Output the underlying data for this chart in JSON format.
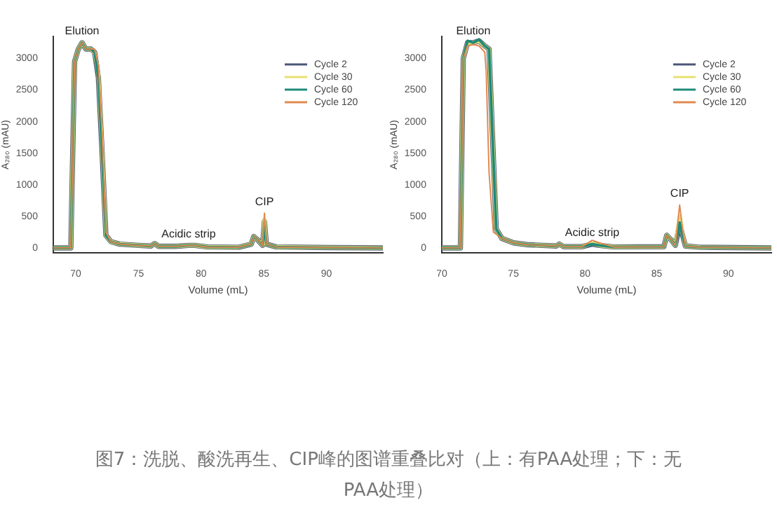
{
  "chart_data": [
    {
      "type": "line",
      "xlabel": "Volume (mL)",
      "ylabel": "A₂₈₀ (mAU)",
      "xlim": [
        68.2,
        94.5
      ],
      "xticks": [
        70,
        75,
        80,
        85,
        90
      ],
      "ylim": [
        -80,
        3350
      ],
      "yticks": [
        0,
        500,
        1000,
        1500,
        2000,
        2500,
        3000
      ],
      "grid": false,
      "legend": "top right",
      "marker": "none",
      "annotations": [
        {
          "text": "Elution",
          "x": 70.5,
          "y": 3250
        },
        {
          "text": "Acidic strip",
          "x": 79,
          "y": 40
        },
        {
          "text": "CIP",
          "x": 85.05,
          "y": 550
        },
        "图7：洗脱、酸洗再生、CIP峰的图谱重叠比对（上：有PAA处理；下：无PAA处理）"
      ],
      "series": [
        {
          "name": "Cycle 2",
          "color": "#4a5578",
          "x": [
            68.2,
            69.6,
            69.9,
            70.2,
            70.5,
            70.8,
            71.2,
            71.5,
            71.8,
            72.1,
            72.4,
            72.8,
            73.5,
            75,
            76,
            76.3,
            76.6,
            78,
            79,
            79.5,
            80.5,
            83,
            84,
            84.2,
            84.5,
            84.9,
            85.05,
            85.2,
            86,
            90,
            94.5
          ],
          "values": [
            0,
            0,
            2950,
            3150,
            3250,
            3150,
            3150,
            3100,
            2700,
            1500,
            200,
            100,
            60,
            40,
            30,
            70,
            25,
            25,
            40,
            40,
            15,
            10,
            60,
            180,
            130,
            40,
            420,
            60,
            15,
            5,
            0
          ]
        },
        {
          "name": "Cycle 30",
          "color": "#e8e070",
          "x": [
            68.2,
            69.6,
            69.9,
            70.2,
            70.5,
            70.8,
            71.2,
            71.5,
            71.8,
            72.1,
            72.4,
            72.8,
            73.5,
            75,
            76,
            76.3,
            76.6,
            78,
            79,
            79.5,
            80.5,
            83,
            84,
            84.2,
            84.5,
            84.9,
            85.05,
            85.2,
            86,
            90,
            94.5
          ],
          "values": [
            0,
            0,
            2950,
            3150,
            3250,
            3150,
            3150,
            3100,
            2750,
            1550,
            200,
            100,
            60,
            40,
            30,
            70,
            25,
            25,
            40,
            40,
            15,
            10,
            60,
            180,
            130,
            40,
            450,
            60,
            15,
            5,
            0
          ]
        },
        {
          "name": "Cycle 60",
          "color": "#1f8a7a",
          "x": [
            68.2,
            69.6,
            69.9,
            70.2,
            70.5,
            70.8,
            71.2,
            71.5,
            71.8,
            72.1,
            72.4,
            72.8,
            73.5,
            75,
            76,
            76.3,
            76.6,
            78,
            79,
            79.5,
            80.5,
            83,
            84,
            84.2,
            84.5,
            84.9,
            85.05,
            85.2,
            86,
            90,
            94.5
          ],
          "values": [
            0,
            0,
            2950,
            3150,
            3250,
            3150,
            3150,
            3100,
            2700,
            1500,
            200,
            100,
            60,
            40,
            30,
            70,
            25,
            25,
            40,
            40,
            15,
            10,
            60,
            180,
            130,
            40,
            400,
            60,
            15,
            5,
            0
          ]
        },
        {
          "name": "Cycle 120",
          "color": "#e08a50",
          "x": [
            68.2,
            69.6,
            69.9,
            70.2,
            70.5,
            70.8,
            71.2,
            71.5,
            71.8,
            72.1,
            72.4,
            72.8,
            73.5,
            75,
            76,
            76.3,
            76.6,
            78,
            79,
            79.5,
            80.5,
            83,
            84,
            84.2,
            84.5,
            84.9,
            85.05,
            85.2,
            86,
            90,
            94.5
          ],
          "values": [
            0,
            0,
            2950,
            3150,
            3250,
            3150,
            3150,
            3150,
            2900,
            1800,
            250,
            100,
            60,
            40,
            30,
            70,
            25,
            25,
            40,
            40,
            15,
            10,
            60,
            180,
            130,
            40,
            550,
            60,
            15,
            5,
            0
          ]
        }
      ]
    },
    {
      "type": "line",
      "xlabel": "Volume (mL)",
      "ylabel": "A₂₈₀ (mAU)",
      "xlim": [
        70,
        93
      ],
      "xticks": [
        70,
        75,
        80,
        85,
        90
      ],
      "ylim": [
        -80,
        3350
      ],
      "yticks": [
        0,
        500,
        1000,
        1500,
        2000,
        2500,
        3000
      ],
      "grid": false,
      "legend": "top right",
      "marker": "none",
      "annotations": [
        {
          "text": "Elution",
          "x": 72.2,
          "y": 3250
        },
        {
          "text": "Acidic strip",
          "x": 80.5,
          "y": 60
        },
        {
          "text": "CIP",
          "x": 86.6,
          "y": 680
        }
      ],
      "series": [
        {
          "name": "Cycle 2",
          "color": "#4a5578",
          "x": [
            70,
            71.3,
            71.5,
            71.8,
            72.2,
            72.6,
            73,
            73.3,
            73.5,
            73.8,
            74.2,
            75,
            76,
            78,
            78.2,
            78.5,
            79.8,
            80.5,
            81,
            82,
            85.5,
            85.7,
            86,
            86.3,
            86.6,
            86.8,
            87,
            88,
            93
          ],
          "values": [
            0,
            0,
            3000,
            3250,
            3250,
            3280,
            3200,
            3150,
            2000,
            300,
            150,
            80,
            50,
            30,
            60,
            20,
            20,
            60,
            40,
            15,
            20,
            200,
            130,
            40,
            380,
            200,
            30,
            10,
            0
          ]
        },
        {
          "name": "Cycle 30",
          "color": "#e8e070",
          "x": [
            70,
            71.3,
            71.5,
            71.8,
            72.2,
            72.6,
            73,
            73.3,
            73.5,
            73.8,
            74.2,
            75,
            76,
            78,
            78.2,
            78.5,
            79.8,
            80.5,
            81,
            82,
            85.5,
            85.7,
            86,
            86.3,
            86.6,
            86.8,
            87,
            88,
            93
          ],
          "values": [
            0,
            0,
            3000,
            3250,
            3250,
            3280,
            3200,
            3150,
            2000,
            300,
            150,
            80,
            50,
            30,
            60,
            20,
            20,
            70,
            40,
            15,
            20,
            200,
            130,
            40,
            500,
            220,
            30,
            10,
            0
          ]
        },
        {
          "name": "Cycle 60",
          "color": "#1f8a7a",
          "x": [
            70,
            71.3,
            71.5,
            71.8,
            72.2,
            72.6,
            73,
            73.3,
            73.5,
            73.8,
            74.2,
            75,
            76,
            78,
            78.2,
            78.5,
            79.8,
            80.5,
            81,
            82,
            85.5,
            85.7,
            86,
            86.3,
            86.6,
            86.8,
            87,
            88,
            93
          ],
          "values": [
            0,
            0,
            3000,
            3280,
            3250,
            3300,
            3200,
            3150,
            2000,
            300,
            150,
            80,
            50,
            30,
            60,
            20,
            20,
            60,
            40,
            15,
            20,
            200,
            130,
            40,
            400,
            200,
            30,
            10,
            0
          ]
        },
        {
          "name": "Cycle 120",
          "color": "#e08a50",
          "x": [
            70,
            71.3,
            71.5,
            71.8,
            72.2,
            72.6,
            73,
            73.1,
            73.3,
            73.6,
            74.2,
            75,
            76,
            78,
            78.2,
            78.5,
            79.8,
            80.5,
            81,
            82,
            85.5,
            85.7,
            86,
            86.3,
            86.6,
            86.8,
            87,
            88,
            93
          ],
          "values": [
            0,
            0,
            3000,
            3200,
            3220,
            3200,
            3100,
            2800,
            1200,
            250,
            150,
            80,
            50,
            30,
            60,
            20,
            20,
            120,
            80,
            15,
            20,
            200,
            130,
            40,
            680,
            300,
            30,
            10,
            0
          ]
        }
      ]
    }
  ]
}
